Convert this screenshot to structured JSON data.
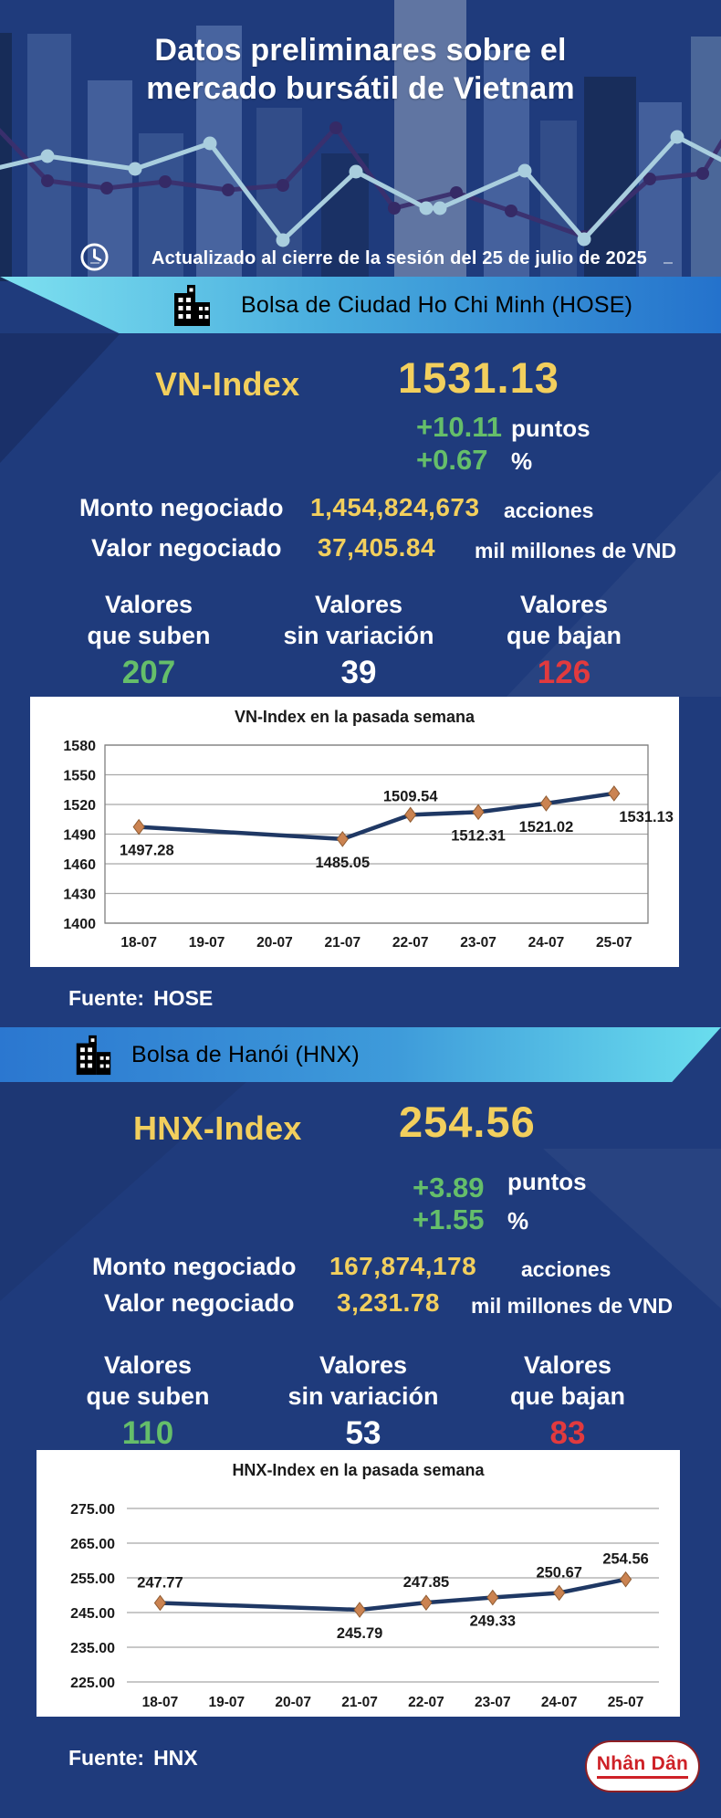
{
  "colors": {
    "background": "#1F3B7C",
    "yellow": "#F2CF5D",
    "green": "#65BE6A",
    "red": "#E23A3E",
    "banner_cyan": "#7EE1F0",
    "banner_blue": "#2472CC",
    "navy_line": "#1F3864",
    "marker": "#CB8351",
    "grid": "#A8A8A8",
    "logo_red": "#CE2127"
  },
  "icons": {
    "header_time": "clock-icon",
    "hose_banner": "building-icon",
    "hnx_banner": "building-icon"
  },
  "header": {
    "title_line1": "Datos preliminares sobre el",
    "title_line2": "mercado bursátil de Vietnam",
    "updated": "Actualizado al cierre de la sesión del 25 de julio de 2025"
  },
  "hose": {
    "banner": "Bolsa de Ciudad Ho Chi Minh (HOSE)",
    "index_label": "VN-Index",
    "index_value": "1531.13",
    "change_points": "+10.11",
    "change_points_unit": "puntos",
    "change_pct": "+0.67",
    "change_pct_unit": "%",
    "volume_label": "Monto negociado",
    "volume_value": "1,454,824,673",
    "volume_unit": "acciones",
    "value_label": "Valor negociado",
    "value_value": "37,405.84",
    "value_unit": "mil millones de VND",
    "stats": [
      {
        "label_line1": "Valores",
        "label_line2": "que suben",
        "value": "207"
      },
      {
        "label_line1": "Valores",
        "label_line2": "sin variación",
        "value": "39"
      },
      {
        "label_line1": "Valores",
        "label_line2": "que bajan",
        "value": "126"
      }
    ],
    "source_label": "Fuente:",
    "source_value": "HOSE"
  },
  "hnx": {
    "banner": "Bolsa de Hanói (HNX)",
    "index_label": "HNX-Index",
    "index_value": "254.56",
    "change_points": "+3.89",
    "change_points_unit": "puntos",
    "change_pct": "+1.55",
    "change_pct_unit": "%",
    "volume_label": "Monto negociado",
    "volume_value": "167,874,178",
    "volume_unit": "acciones",
    "value_label": "Valor negociado",
    "value_value": "3,231.78",
    "value_unit": "mil millones de VND",
    "stats": [
      {
        "label_line1": "Valores",
        "label_line2": "que suben",
        "value": "110"
      },
      {
        "label_line1": "Valores",
        "label_line2": "sin variación",
        "value": "53"
      },
      {
        "label_line1": "Valores",
        "label_line2": "que bajan",
        "value": "83"
      }
    ],
    "source_label": "Fuente:",
    "source_value": "HNX"
  },
  "footer": {
    "logo_text": "Nhân Dân"
  },
  "chart_data": [
    {
      "type": "line",
      "title": "VN-Index en la pasada semana",
      "categories": [
        "18-07",
        "19-07",
        "20-07",
        "21-07",
        "22-07",
        "23-07",
        "24-07",
        "25-07"
      ],
      "values": [
        1497.28,
        null,
        null,
        1485.05,
        1509.54,
        1512.31,
        1521.02,
        1531.13
      ],
      "data_labels": [
        "1497.28",
        null,
        null,
        "1485.05",
        "1509.54",
        "1512.31",
        "1521.02",
        "1531.13"
      ],
      "label_positions": [
        "left-below",
        null,
        null,
        "below",
        "above",
        "below",
        "below",
        "right-below"
      ],
      "xlabel": "",
      "ylabel": "",
      "ylim": [
        1400,
        1580
      ],
      "y_ticks": [
        "1580",
        "1550",
        "1520",
        "1490",
        "1460",
        "1430",
        "1400"
      ],
      "grid": true,
      "border": true,
      "legend": "none",
      "line_color": "#1F3864",
      "marker": "diamond",
      "marker_color": "#CB8351",
      "marker_edge": "#8F5C33",
      "grid_color": "#A8A8A8"
    },
    {
      "type": "line",
      "title": "HNX-Index en la pasada semana",
      "categories": [
        "18-07",
        "19-07",
        "20-07",
        "21-07",
        "22-07",
        "23-07",
        "24-07",
        "25-07"
      ],
      "values": [
        247.77,
        null,
        null,
        245.79,
        247.85,
        249.33,
        250.67,
        254.56
      ],
      "data_labels": [
        "247.77",
        null,
        null,
        "245.79",
        "247.85",
        "249.33",
        "250.67",
        "254.56"
      ],
      "label_positions": [
        "above",
        null,
        null,
        "below",
        "above",
        "below",
        "above",
        "above"
      ],
      "xlabel": "",
      "ylabel": "",
      "ylim": [
        225,
        275
      ],
      "y_ticks": [
        "275.00",
        "265.00",
        "255.00",
        "245.00",
        "235.00",
        "225.00"
      ],
      "grid": true,
      "border": false,
      "legend": "none",
      "line_color": "#1F3864",
      "marker": "diamond",
      "marker_color": "#CB8351",
      "marker_edge": "#8F5C33",
      "grid_color": "#A8A8A8"
    }
  ]
}
